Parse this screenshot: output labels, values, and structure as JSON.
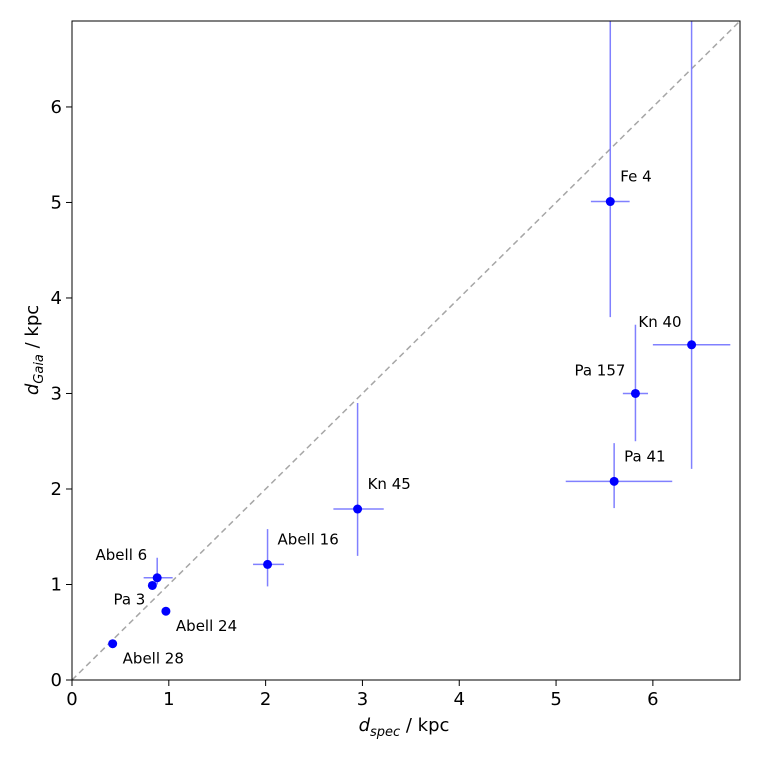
{
  "chart_data": {
    "type": "scatter",
    "title": "",
    "xlabel": {
      "main": "d",
      "sub": "spec",
      "unit": " / kpc"
    },
    "ylabel": {
      "main": "d",
      "sub": "Gaia",
      "unit": " / kpc"
    },
    "xlim": [
      0,
      6.9
    ],
    "ylim": [
      0,
      6.9
    ],
    "xticks": [
      0,
      1,
      2,
      3,
      4,
      5,
      6
    ],
    "yticks": [
      0,
      1,
      2,
      3,
      4,
      5,
      6
    ],
    "grid": false,
    "reference_line": {
      "type": "y=x",
      "style": "dashed",
      "color": "#a6a6a6"
    },
    "point_color": "#0000ff",
    "errorbar_color": "#8080ff",
    "points": [
      {
        "name": "Abell 28",
        "x": 0.42,
        "y": 0.38,
        "xerr": [
          0,
          0
        ],
        "yerr": [
          0,
          0
        ],
        "label_pos": "below-right"
      },
      {
        "name": "Pa 3",
        "x": 0.83,
        "y": 0.99,
        "xerr": [
          0,
          0
        ],
        "yerr": [
          0,
          0
        ],
        "label_pos": "below-left"
      },
      {
        "name": "Abell 6",
        "x": 0.88,
        "y": 1.07,
        "xerr": [
          0.14,
          0.16
        ],
        "yerr": [
          0.07,
          0.21
        ],
        "label_pos": "above-left"
      },
      {
        "name": "Abell 24",
        "x": 0.97,
        "y": 0.72,
        "xerr": [
          0,
          0
        ],
        "yerr": [
          0,
          0
        ],
        "label_pos": "below-right"
      },
      {
        "name": "Abell 16",
        "x": 2.02,
        "y": 1.21,
        "xerr": [
          0.15,
          0.17
        ],
        "yerr": [
          0.23,
          0.37
        ],
        "label_pos": "above-right"
      },
      {
        "name": "Kn 45",
        "x": 2.95,
        "y": 1.79,
        "xerr": [
          0.25,
          0.27
        ],
        "yerr": [
          0.49,
          1.11
        ],
        "label_pos": "above-right"
      },
      {
        "name": "Pa 41",
        "x": 5.6,
        "y": 2.08,
        "xerr": [
          0.5,
          0.6
        ],
        "yerr": [
          0.28,
          0.4
        ],
        "label_pos": "above-right"
      },
      {
        "name": "Pa 157",
        "x": 5.82,
        "y": 3.0,
        "xerr": [
          0.13,
          0.13
        ],
        "yerr": [
          0.5,
          0.72
        ],
        "label_pos": "above-left"
      },
      {
        "name": "Kn 40",
        "x": 6.4,
        "y": 3.51,
        "xerr": [
          0.4,
          0.4
        ],
        "yerr": [
          1.3,
          3.5
        ],
        "label_pos": "above-left"
      },
      {
        "name": "Fe 4",
        "x": 5.56,
        "y": 5.01,
        "xerr": [
          0.2,
          0.2
        ],
        "yerr": [
          1.21,
          2.1
        ],
        "label_pos": "above-right"
      }
    ]
  }
}
